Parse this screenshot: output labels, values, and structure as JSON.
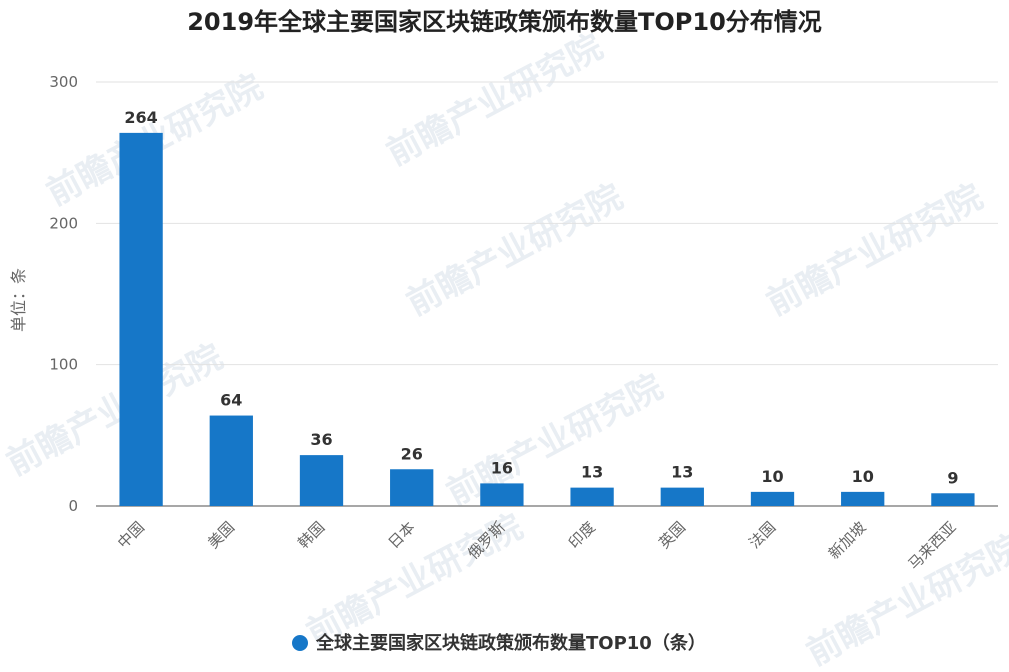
{
  "chart_data": {
    "type": "bar",
    "title": "2019年全球主要国家区块链政策颁布数量TOP10分布情况",
    "ylabel": "单位：条",
    "xlabel": "",
    "categories": [
      "中国",
      "美国",
      "韩国",
      "日本",
      "俄罗斯",
      "印度",
      "英国",
      "法国",
      "新加坡",
      "马来西亚"
    ],
    "series": [
      {
        "name": "全球主要国家区块链政策颁布数量TOP10（条）",
        "values": [
          264,
          64,
          36,
          26,
          16,
          13,
          13,
          10,
          10,
          9
        ],
        "color": "#1677c8"
      }
    ],
    "ylim": [
      0,
      300
    ],
    "yticks": [
      0,
      100,
      200,
      300
    ],
    "grid": true,
    "legend_position": "bottom-center"
  },
  "watermark": {
    "text": "前瞻产业研究院"
  }
}
